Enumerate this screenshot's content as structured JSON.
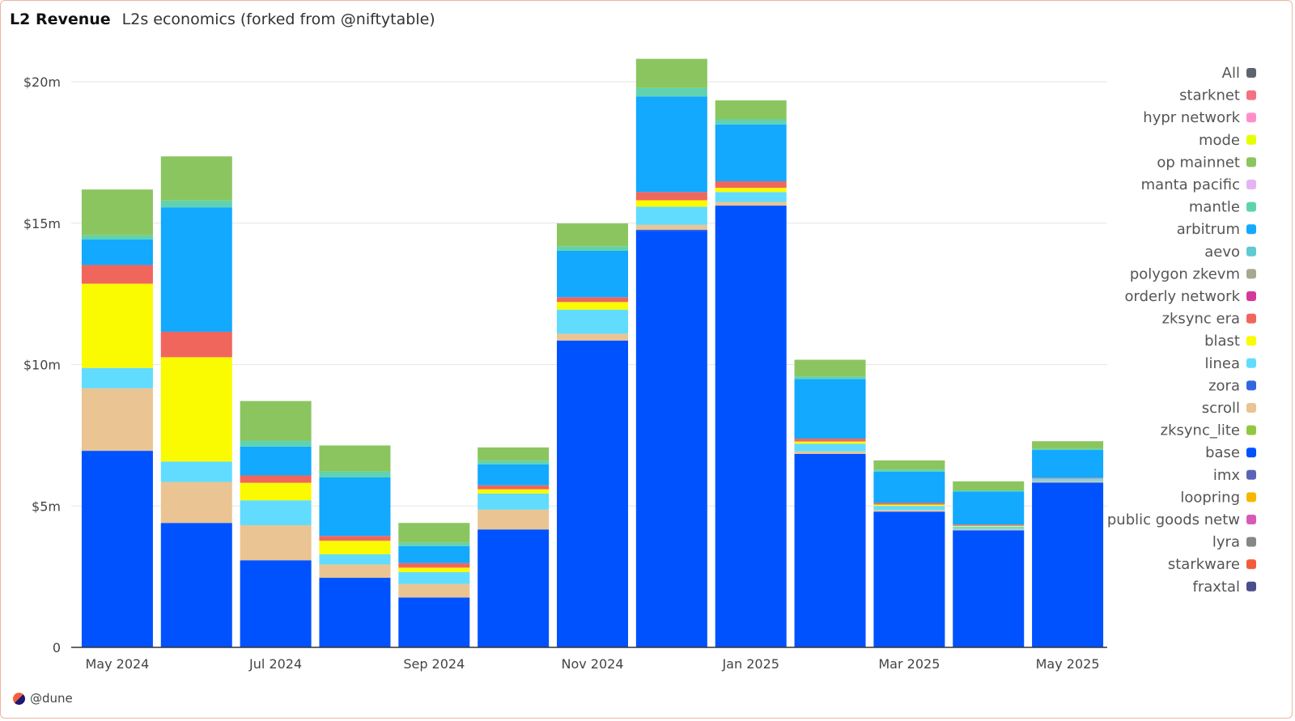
{
  "header": {
    "title": "L2 Revenue",
    "subtitle": "L2s economics (forked from @niftytable)"
  },
  "footer": {
    "brand": "@dune"
  },
  "chart_data": {
    "type": "bar",
    "stacked": true,
    "title": "",
    "xlabel": "",
    "ylabel": "",
    "ylim": [
      0,
      20000000
    ],
    "y_ticks": [
      {
        "value": 0,
        "label": "0"
      },
      {
        "value": 5000000,
        "label": "$5m"
      },
      {
        "value": 10000000,
        "label": "$10m"
      },
      {
        "value": 15000000,
        "label": "$15m"
      },
      {
        "value": 20000000,
        "label": "$20m"
      }
    ],
    "grid": true,
    "legend_position": "right",
    "categories": [
      "May 2024",
      "Jun 2024",
      "Jul 2024",
      "Aug 2024",
      "Sep 2024",
      "Oct 2024",
      "Nov 2024",
      "Dec 2024",
      "Jan 2025",
      "Feb 2025",
      "Mar 2025",
      "Apr 2025",
      "May 2025"
    ],
    "x_tick_labels": [
      "May 2024",
      "",
      "Jul 2024",
      "",
      "Sep 2024",
      "",
      "Nov 2024",
      "",
      "Jan 2025",
      "",
      "Mar 2025",
      "",
      "May 2025"
    ],
    "legend": [
      {
        "name": "All",
        "color": "#5f6570"
      },
      {
        "name": "starknet",
        "color": "#f2727f"
      },
      {
        "name": "hypr network",
        "color": "#ff8fc8"
      },
      {
        "name": "mode",
        "color": "#e6ff00"
      },
      {
        "name": "op mainnet",
        "color": "#8bc55f"
      },
      {
        "name": "manta pacific",
        "color": "#e6b3f5"
      },
      {
        "name": "mantle",
        "color": "#5fd3b0"
      },
      {
        "name": "arbitrum",
        "color": "#12a9ff"
      },
      {
        "name": "aevo",
        "color": "#5ecbd1"
      },
      {
        "name": "polygon zkevm",
        "color": "#a7a890"
      },
      {
        "name": "orderly network",
        "color": "#d4389a"
      },
      {
        "name": "zksync era",
        "color": "#f0665d"
      },
      {
        "name": "blast",
        "color": "#fafa00"
      },
      {
        "name": "linea",
        "color": "#61dcff"
      },
      {
        "name": "zora",
        "color": "#3366e0"
      },
      {
        "name": "scroll",
        "color": "#eac493"
      },
      {
        "name": "zksync_lite",
        "color": "#92c83e"
      },
      {
        "name": "base",
        "color": "#0052ff"
      },
      {
        "name": "imx",
        "color": "#5b63b7"
      },
      {
        "name": "loopring",
        "color": "#f5b700"
      },
      {
        "name": "public goods netw",
        "color": "#d85ab8"
      },
      {
        "name": "lyra",
        "color": "#878787"
      },
      {
        "name": "starkware",
        "color": "#f25c3c"
      },
      {
        "name": "fraxtal",
        "color": "#4a4e8c"
      }
    ],
    "series": [
      {
        "name": "base",
        "color": "#0052ff",
        "values": [
          6950000,
          4400000,
          3080000,
          2460000,
          1760000,
          4170000,
          10850000,
          14720000,
          15620000,
          6840000,
          4800000,
          4140000,
          5830000
        ]
      },
      {
        "name": "zora",
        "color": "#3366e0",
        "values": [
          0,
          0,
          0,
          0,
          0,
          0,
          0,
          50000,
          0,
          0,
          0,
          0,
          0
        ]
      },
      {
        "name": "scroll",
        "color": "#eac493",
        "values": [
          2210000,
          1450000,
          1240000,
          470000,
          480000,
          700000,
          240000,
          170000,
          130000,
          90000,
          60000,
          40000,
          50000
        ]
      },
      {
        "name": "zksync_lite",
        "color": "#92c83e",
        "values": [
          0,
          0,
          0,
          0,
          0,
          0,
          0,
          0,
          0,
          0,
          0,
          0,
          0
        ]
      },
      {
        "name": "linea",
        "color": "#61dcff",
        "values": [
          720000,
          720000,
          880000,
          360000,
          420000,
          570000,
          850000,
          640000,
          350000,
          270000,
          140000,
          90000,
          90000
        ]
      },
      {
        "name": "blast",
        "color": "#fafa00",
        "values": [
          2980000,
          3690000,
          620000,
          480000,
          160000,
          150000,
          270000,
          230000,
          150000,
          80000,
          50000,
          30000,
          0
        ]
      },
      {
        "name": "zksync era",
        "color": "#f0665d",
        "values": [
          660000,
          900000,
          260000,
          170000,
          160000,
          140000,
          170000,
          290000,
          230000,
          100000,
          60000,
          40000,
          30000
        ]
      },
      {
        "name": "arbitrum",
        "color": "#12a9ff",
        "values": [
          900000,
          4400000,
          1020000,
          2070000,
          600000,
          740000,
          1640000,
          3380000,
          2010000,
          2110000,
          1100000,
          1170000,
          980000
        ]
      },
      {
        "name": "mantle",
        "color": "#5fd3b0",
        "values": [
          150000,
          240000,
          210000,
          210000,
          120000,
          130000,
          150000,
          300000,
          180000,
          90000,
          80000,
          40000,
          40000
        ]
      },
      {
        "name": "op mainnet",
        "color": "#8bc55f",
        "values": [
          1620000,
          1560000,
          1400000,
          920000,
          700000,
          470000,
          820000,
          1030000,
          670000,
          590000,
          320000,
          320000,
          270000
        ]
      }
    ]
  }
}
